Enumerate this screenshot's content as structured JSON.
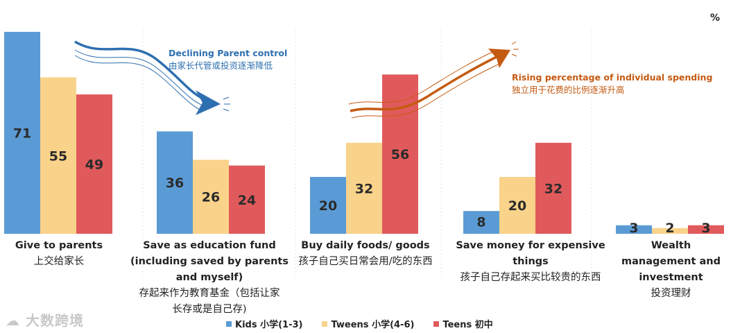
{
  "unit": "%",
  "colors": {
    "kids": "#5b9bd5",
    "tweens": "#f9d38a",
    "teens": "#e05a5b",
    "rising": "#c55a11",
    "declining": "#2e6fb0"
  },
  "chart_data": {
    "type": "bar",
    "title": "",
    "ylabel": "%",
    "ylim": [
      0,
      71
    ],
    "categories": [
      {
        "en": "Give to parents",
        "zh": "上交给家长"
      },
      {
        "en": "Save as education fund (including saved by parents and myself)",
        "zh": "存起来作为教育基金（包括让家长存或是自己存)"
      },
      {
        "en": "Buy daily foods/ goods",
        "zh": "孩子自己买日常会用/吃的东西"
      },
      {
        "en": "Save money for expensive things",
        "zh": "孩子自己存起来买比较贵的东西"
      },
      {
        "en": "Wealth management and investment",
        "zh": "投资理财"
      }
    ],
    "series": [
      {
        "name": "Kids 小学(1-3)",
        "color_key": "kids",
        "values": [
          71,
          36,
          20,
          8,
          3
        ]
      },
      {
        "name": "Tweens 小学(4-6)",
        "color_key": "tweens",
        "values": [
          55,
          26,
          32,
          20,
          2
        ]
      },
      {
        "name": "Teens 初中",
        "color_key": "teens",
        "values": [
          49,
          24,
          56,
          32,
          3
        ]
      }
    ]
  },
  "annotations": {
    "declining": {
      "en": "Declining Parent control",
      "zh": "由家长代管或投资逐渐降低"
    },
    "rising": {
      "en": "Rising percentage of individual spending",
      "zh": "独立用于花费的比例逐渐升高"
    }
  },
  "watermark": "大数跨境"
}
